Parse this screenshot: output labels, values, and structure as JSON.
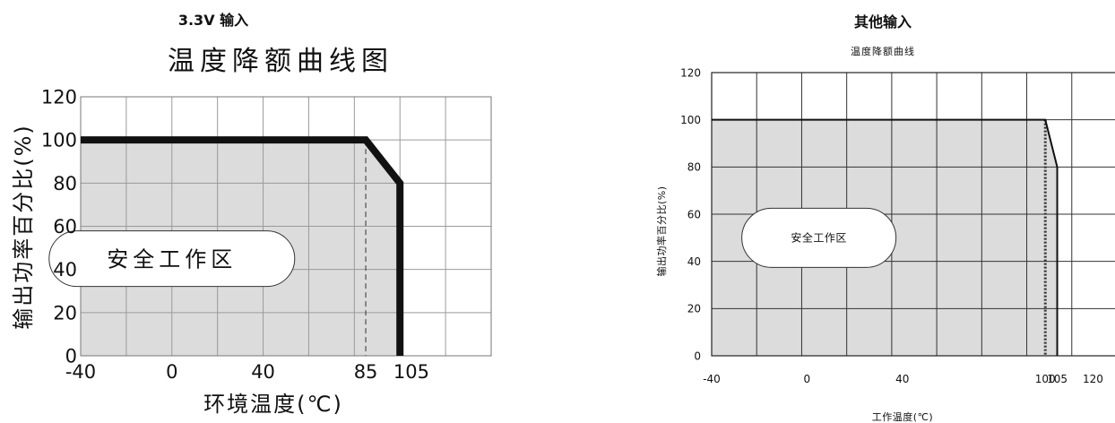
{
  "left": {
    "input_title": "3.3V 输入",
    "chart_data": {
      "type": "line",
      "title": "温度降额曲线图",
      "xlabel": "环境温度(℃)",
      "ylabel": "输出功率百分比(%)",
      "x_tick_labels": [
        "-40",
        "0",
        "40",
        "85",
        "105"
      ],
      "y_tick_labels": [
        "0",
        "20",
        "40",
        "60",
        "80",
        "100",
        "120"
      ],
      "xlim": [
        -40,
        140
      ],
      "ylim": [
        0,
        120
      ],
      "grid": true,
      "safe_zone_label": "安全工作区",
      "series": [
        {
          "points": [
            [
              -40,
              100
            ],
            [
              85,
              100
            ],
            [
              100,
              80
            ],
            [
              100,
              0
            ]
          ]
        }
      ],
      "reference_line_x": 85
    }
  },
  "right": {
    "input_title": "其他输入",
    "chart_data": {
      "type": "line",
      "title": "温度降额曲线",
      "xlabel": "工作温度(℃)",
      "ylabel": "输出功率百分比(%)",
      "x_tick_labels": [
        "-40",
        "0",
        "40",
        "100",
        "105",
        "120"
      ],
      "y_tick_labels": [
        "0",
        "20",
        "40",
        "60",
        "80",
        "100",
        "120"
      ],
      "xlim": [
        -40,
        130
      ],
      "ylim": [
        0,
        120
      ],
      "grid": true,
      "safe_zone_label": "安全工作区",
      "series": [
        {
          "points": [
            [
              -40,
              100
            ],
            [
              100,
              100
            ],
            [
              105,
              80
            ],
            [
              105,
              0
            ]
          ]
        }
      ],
      "reference_line_x": 100
    }
  }
}
